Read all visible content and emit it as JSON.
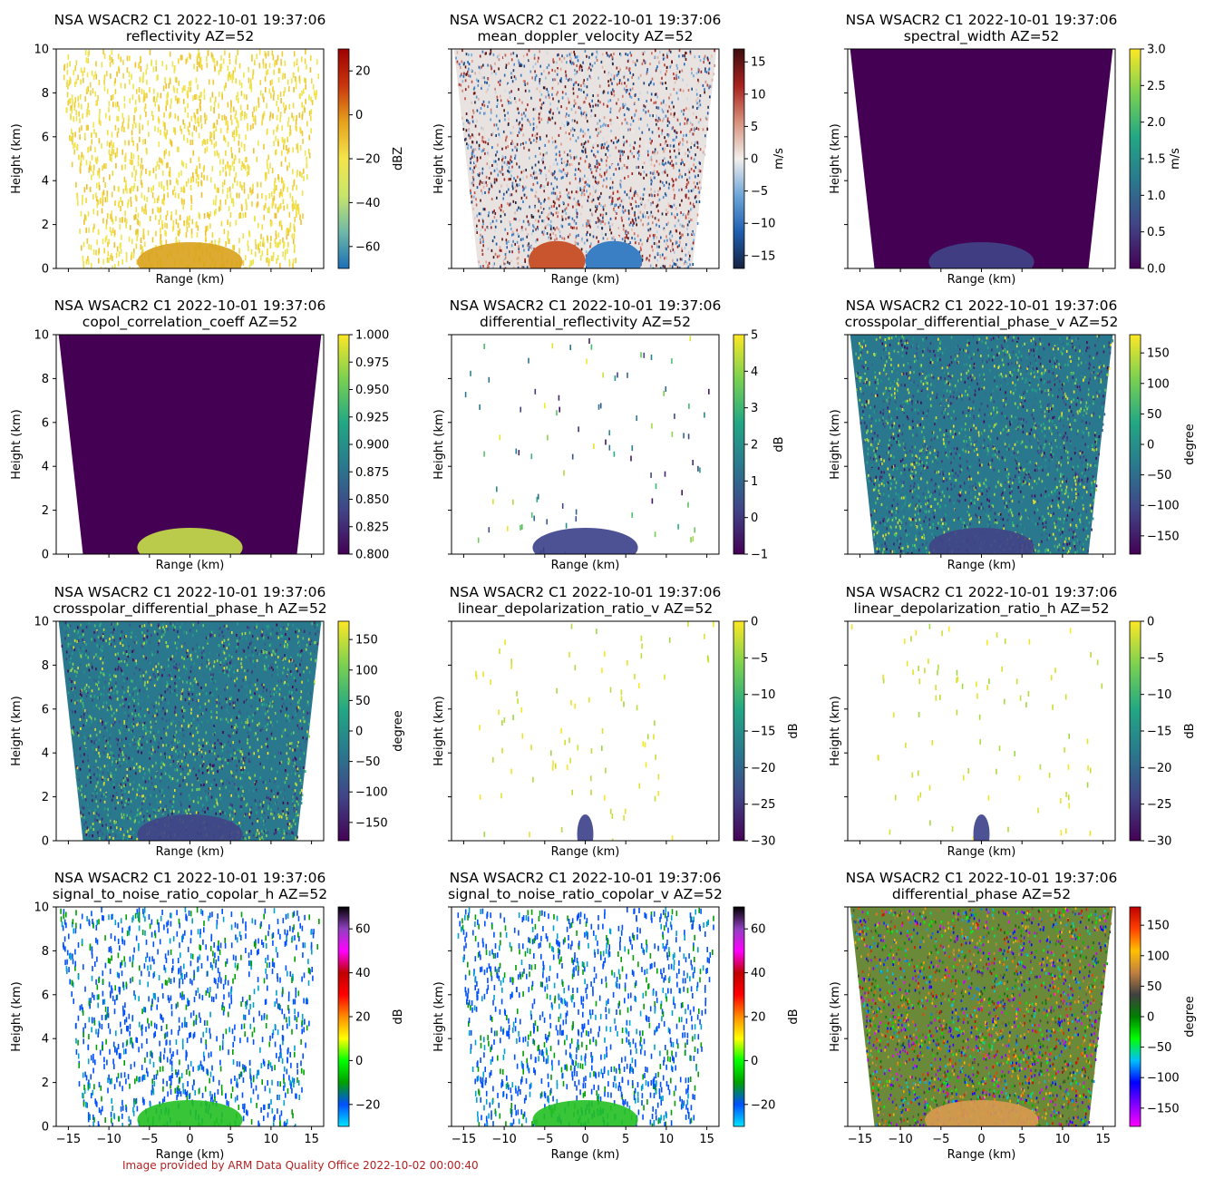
{
  "figure": {
    "footer": "Image provided by ARM Data Quality Office 2022-10-02 00:00:40",
    "panel_title": "NSA WSACR2 C1 2022-10-01 19:37:06",
    "xlabel": "Range (km)",
    "ylabel": "Height (km)"
  },
  "chart_data": [
    {
      "type": "heatmap",
      "title": "NSA WSACR2 C1 2022-10-01 19:37:06",
      "subtitle": "reflectivity  AZ=52",
      "variable": "reflectivity",
      "azimuth": "AZ=52",
      "xlabel": "Range (km)",
      "ylabel": "Height (km)",
      "xlim": [
        -16.5,
        16.5
      ],
      "ylim": [
        0,
        10
      ],
      "cbar_label": "dBZ",
      "clim": [
        -70,
        30
      ],
      "cbar_ticks": [
        "20",
        "0",
        "−20",
        "−40",
        "−60"
      ],
      "cbar_tick_values": [
        20,
        0,
        -20,
        -40,
        -60
      ],
      "colormap": "pyart_HomeyerRainbow",
      "colors": [
        "#1a6fb8",
        "#6fb9a8",
        "#c8e66a",
        "#f4e54a",
        "#e6a21c",
        "#c9360e",
        "#9e0000"
      ]
    },
    {
      "type": "heatmap",
      "title": "NSA WSACR2 C1 2022-10-01 19:37:06",
      "subtitle": "mean_doppler_velocity  AZ=52",
      "variable": "mean_doppler_velocity",
      "azimuth": "AZ=52",
      "xlabel": "Range (km)",
      "ylabel": "Height (km)",
      "xlim": [
        -16.5,
        16.5
      ],
      "ylim": [
        0,
        10
      ],
      "cbar_label": "m/s",
      "clim": [
        -17,
        17
      ],
      "cbar_ticks": [
        "15",
        "10",
        "5",
        "0",
        "−5",
        "−10",
        "−15"
      ],
      "cbar_tick_values": [
        15,
        10,
        5,
        0,
        -5,
        -10,
        -15
      ],
      "colormap": "balance",
      "colors": [
        "#17223f",
        "#1f5fb0",
        "#6ea6d8",
        "#f2efec",
        "#d7917d",
        "#a8221f",
        "#3d0d0f"
      ]
    },
    {
      "type": "heatmap",
      "title": "NSA WSACR2 C1 2022-10-01 19:37:06",
      "subtitle": "spectral_width  AZ=52",
      "variable": "spectral_width",
      "azimuth": "AZ=52",
      "xlabel": "Range (km)",
      "ylabel": "Height (km)",
      "xlim": [
        -16.5,
        16.5
      ],
      "ylim": [
        0,
        10
      ],
      "cbar_label": "m/s",
      "clim": [
        0,
        3
      ],
      "cbar_ticks": [
        "3.0",
        "2.5",
        "2.0",
        "1.5",
        "1.0",
        "0.5",
        "0.0"
      ],
      "cbar_tick_values": [
        3.0,
        2.5,
        2.0,
        1.5,
        1.0,
        0.5,
        0.0
      ],
      "colormap": "viridis",
      "colors": [
        "#440154",
        "#414487",
        "#2a788e",
        "#22a884",
        "#7ad151",
        "#fde725"
      ]
    },
    {
      "type": "heatmap",
      "title": "NSA WSACR2 C1 2022-10-01 19:37:06",
      "subtitle": "copol_correlation_coeff  AZ=52",
      "variable": "copol_correlation_coeff",
      "azimuth": "AZ=52",
      "xlabel": "Range (km)",
      "ylabel": "Height (km)",
      "xlim": [
        -16.5,
        16.5
      ],
      "ylim": [
        0,
        10
      ],
      "cbar_label": "",
      "clim": [
        0.8,
        1.0
      ],
      "cbar_ticks": [
        "1.000",
        "0.975",
        "0.950",
        "0.925",
        "0.900",
        "0.875",
        "0.850",
        "0.825",
        "0.800"
      ],
      "cbar_tick_values": [
        1.0,
        0.975,
        0.95,
        0.925,
        0.9,
        0.875,
        0.85,
        0.825,
        0.8
      ],
      "colormap": "viridis",
      "colors": [
        "#440154",
        "#414487",
        "#2a788e",
        "#22a884",
        "#7ad151",
        "#fde725"
      ]
    },
    {
      "type": "heatmap",
      "title": "NSA WSACR2 C1 2022-10-01 19:37:06",
      "subtitle": "differential_reflectivity  AZ=52",
      "variable": "differential_reflectivity",
      "azimuth": "AZ=52",
      "xlabel": "Range (km)",
      "ylabel": "Height (km)",
      "xlim": [
        -16.5,
        16.5
      ],
      "ylim": [
        0,
        10
      ],
      "cbar_label": "dB",
      "clim": [
        -1,
        5
      ],
      "cbar_ticks": [
        "5",
        "4",
        "3",
        "2",
        "1",
        "0",
        "−1"
      ],
      "cbar_tick_values": [
        5,
        4,
        3,
        2,
        1,
        0,
        -1
      ],
      "colormap": "viridis",
      "colors": [
        "#440154",
        "#414487",
        "#2a788e",
        "#22a884",
        "#7ad151",
        "#fde725"
      ]
    },
    {
      "type": "heatmap",
      "title": "NSA WSACR2 C1 2022-10-01 19:37:06",
      "subtitle": "crosspolar_differential_phase_v  AZ=52",
      "variable": "crosspolar_differential_phase_v",
      "azimuth": "AZ=52",
      "xlabel": "Range (km)",
      "ylabel": "Height (km)",
      "xlim": [
        -16.5,
        16.5
      ],
      "ylim": [
        0,
        10
      ],
      "cbar_label": "degree",
      "clim": [
        -180,
        180
      ],
      "cbar_ticks": [
        "150",
        "100",
        "50",
        "0",
        "−50",
        "−100",
        "−150"
      ],
      "cbar_tick_values": [
        150,
        100,
        50,
        0,
        -50,
        -100,
        -150
      ],
      "colormap": "viridis",
      "colors": [
        "#440154",
        "#414487",
        "#2a788e",
        "#22a884",
        "#7ad151",
        "#fde725"
      ]
    },
    {
      "type": "heatmap",
      "title": "NSA WSACR2 C1 2022-10-01 19:37:06",
      "subtitle": "crosspolar_differential_phase_h  AZ=52",
      "variable": "crosspolar_differential_phase_h",
      "azimuth": "AZ=52",
      "xlabel": "Range (km)",
      "ylabel": "Height (km)",
      "xlim": [
        -16.5,
        16.5
      ],
      "ylim": [
        0,
        10
      ],
      "cbar_label": "degree",
      "clim": [
        -180,
        180
      ],
      "cbar_ticks": [
        "150",
        "100",
        "50",
        "0",
        "−50",
        "−100",
        "−150"
      ],
      "cbar_tick_values": [
        150,
        100,
        50,
        0,
        -50,
        -100,
        -150
      ],
      "colormap": "viridis",
      "colors": [
        "#440154",
        "#414487",
        "#2a788e",
        "#22a884",
        "#7ad151",
        "#fde725"
      ]
    },
    {
      "type": "heatmap",
      "title": "NSA WSACR2 C1 2022-10-01 19:37:06",
      "subtitle": "linear_depolarization_ratio_v  AZ=52",
      "variable": "linear_depolarization_ratio_v",
      "azimuth": "AZ=52",
      "xlabel": "Range (km)",
      "ylabel": "Height (km)",
      "xlim": [
        -16.5,
        16.5
      ],
      "ylim": [
        0,
        10
      ],
      "cbar_label": "dB",
      "clim": [
        -30,
        0
      ],
      "cbar_ticks": [
        "0",
        "−5",
        "−10",
        "−15",
        "−20",
        "−25",
        "−30"
      ],
      "cbar_tick_values": [
        0,
        -5,
        -10,
        -15,
        -20,
        -25,
        -30
      ],
      "colormap": "viridis",
      "colors": [
        "#440154",
        "#414487",
        "#2a788e",
        "#22a884",
        "#7ad151",
        "#fde725"
      ]
    },
    {
      "type": "heatmap",
      "title": "NSA WSACR2 C1 2022-10-01 19:37:06",
      "subtitle": "linear_depolarization_ratio_h  AZ=52",
      "variable": "linear_depolarization_ratio_h",
      "azimuth": "AZ=52",
      "xlabel": "Range (km)",
      "ylabel": "Height (km)",
      "xlim": [
        -16.5,
        16.5
      ],
      "ylim": [
        0,
        10
      ],
      "cbar_label": "dB",
      "clim": [
        -30,
        0
      ],
      "cbar_ticks": [
        "0",
        "−5",
        "−10",
        "−15",
        "−20",
        "−25",
        "−30"
      ],
      "cbar_tick_values": [
        0,
        -5,
        -10,
        -15,
        -20,
        -25,
        -30
      ],
      "colormap": "viridis",
      "colors": [
        "#440154",
        "#414487",
        "#2a788e",
        "#22a884",
        "#7ad151",
        "#fde725"
      ]
    },
    {
      "type": "heatmap",
      "title": "NSA WSACR2 C1 2022-10-01 19:37:06",
      "subtitle": "signal_to_noise_ratio_copolar_h  AZ=52",
      "variable": "signal_to_noise_ratio_copolar_h",
      "azimuth": "AZ=52",
      "xlabel": "Range (km)",
      "ylabel": "Height (km)",
      "xlim": [
        -16.5,
        16.5
      ],
      "ylim": [
        0,
        10
      ],
      "cbar_label": "dB",
      "clim": [
        -30,
        70
      ],
      "cbar_ticks": [
        "60",
        "40",
        "20",
        "0",
        "−20"
      ],
      "cbar_tick_values": [
        60,
        40,
        20,
        0,
        -20
      ],
      "colormap": "pyart_NWSRef",
      "colors": [
        "#00e5ff",
        "#0050ff",
        "#00a000",
        "#00ff00",
        "#ffff00",
        "#ff8c00",
        "#ff0000",
        "#c00000",
        "#ff00ff",
        "#9040c0",
        "#000000"
      ]
    },
    {
      "type": "heatmap",
      "title": "NSA WSACR2 C1 2022-10-01 19:37:06",
      "subtitle": "signal_to_noise_ratio_copolar_v  AZ=52",
      "variable": "signal_to_noise_ratio_copolar_v",
      "azimuth": "AZ=52",
      "xlabel": "Range (km)",
      "ylabel": "Height (km)",
      "xlim": [
        -16.5,
        16.5
      ],
      "ylim": [
        0,
        10
      ],
      "cbar_label": "dB",
      "clim": [
        -30,
        70
      ],
      "cbar_ticks": [
        "60",
        "40",
        "20",
        "0",
        "−20"
      ],
      "cbar_tick_values": [
        60,
        40,
        20,
        0,
        -20
      ],
      "colormap": "pyart_NWSRef",
      "colors": [
        "#00e5ff",
        "#0050ff",
        "#00a000",
        "#00ff00",
        "#ffff00",
        "#ff8c00",
        "#ff0000",
        "#c00000",
        "#ff00ff",
        "#9040c0",
        "#000000"
      ]
    },
    {
      "type": "heatmap",
      "title": "NSA WSACR2 C1 2022-10-01 19:37:06",
      "subtitle": "differential_phase  AZ=52",
      "variable": "differential_phase",
      "azimuth": "AZ=52",
      "xlabel": "Range (km)",
      "ylabel": "Height (km)",
      "xlim": [
        -16.5,
        16.5
      ],
      "ylim": [
        0,
        10
      ],
      "cbar_label": "degree",
      "clim": [
        -180,
        180
      ],
      "cbar_ticks": [
        "150",
        "100",
        "50",
        "0",
        "−50",
        "−100",
        "−150"
      ],
      "cbar_tick_values": [
        150,
        100,
        50,
        0,
        -50,
        -100,
        -150
      ],
      "colormap": "pyart_Wild25",
      "colors": [
        "#ff00ff",
        "#8000ff",
        "#0000ff",
        "#00c0ff",
        "#00ff00",
        "#008000",
        "#404040",
        "#c08040",
        "#ffc000",
        "#ff4000",
        "#c00000"
      ]
    }
  ],
  "axes": {
    "xticks": [
      "−15",
      "−10",
      "−5",
      "0",
      "5",
      "10",
      "15"
    ],
    "xtick_values": [
      -15,
      -10,
      -5,
      0,
      5,
      10,
      15
    ],
    "yticks": [
      "0",
      "2",
      "4",
      "6",
      "8",
      "10"
    ],
    "ytick_values": [
      0,
      2,
      4,
      6,
      8,
      10
    ]
  }
}
